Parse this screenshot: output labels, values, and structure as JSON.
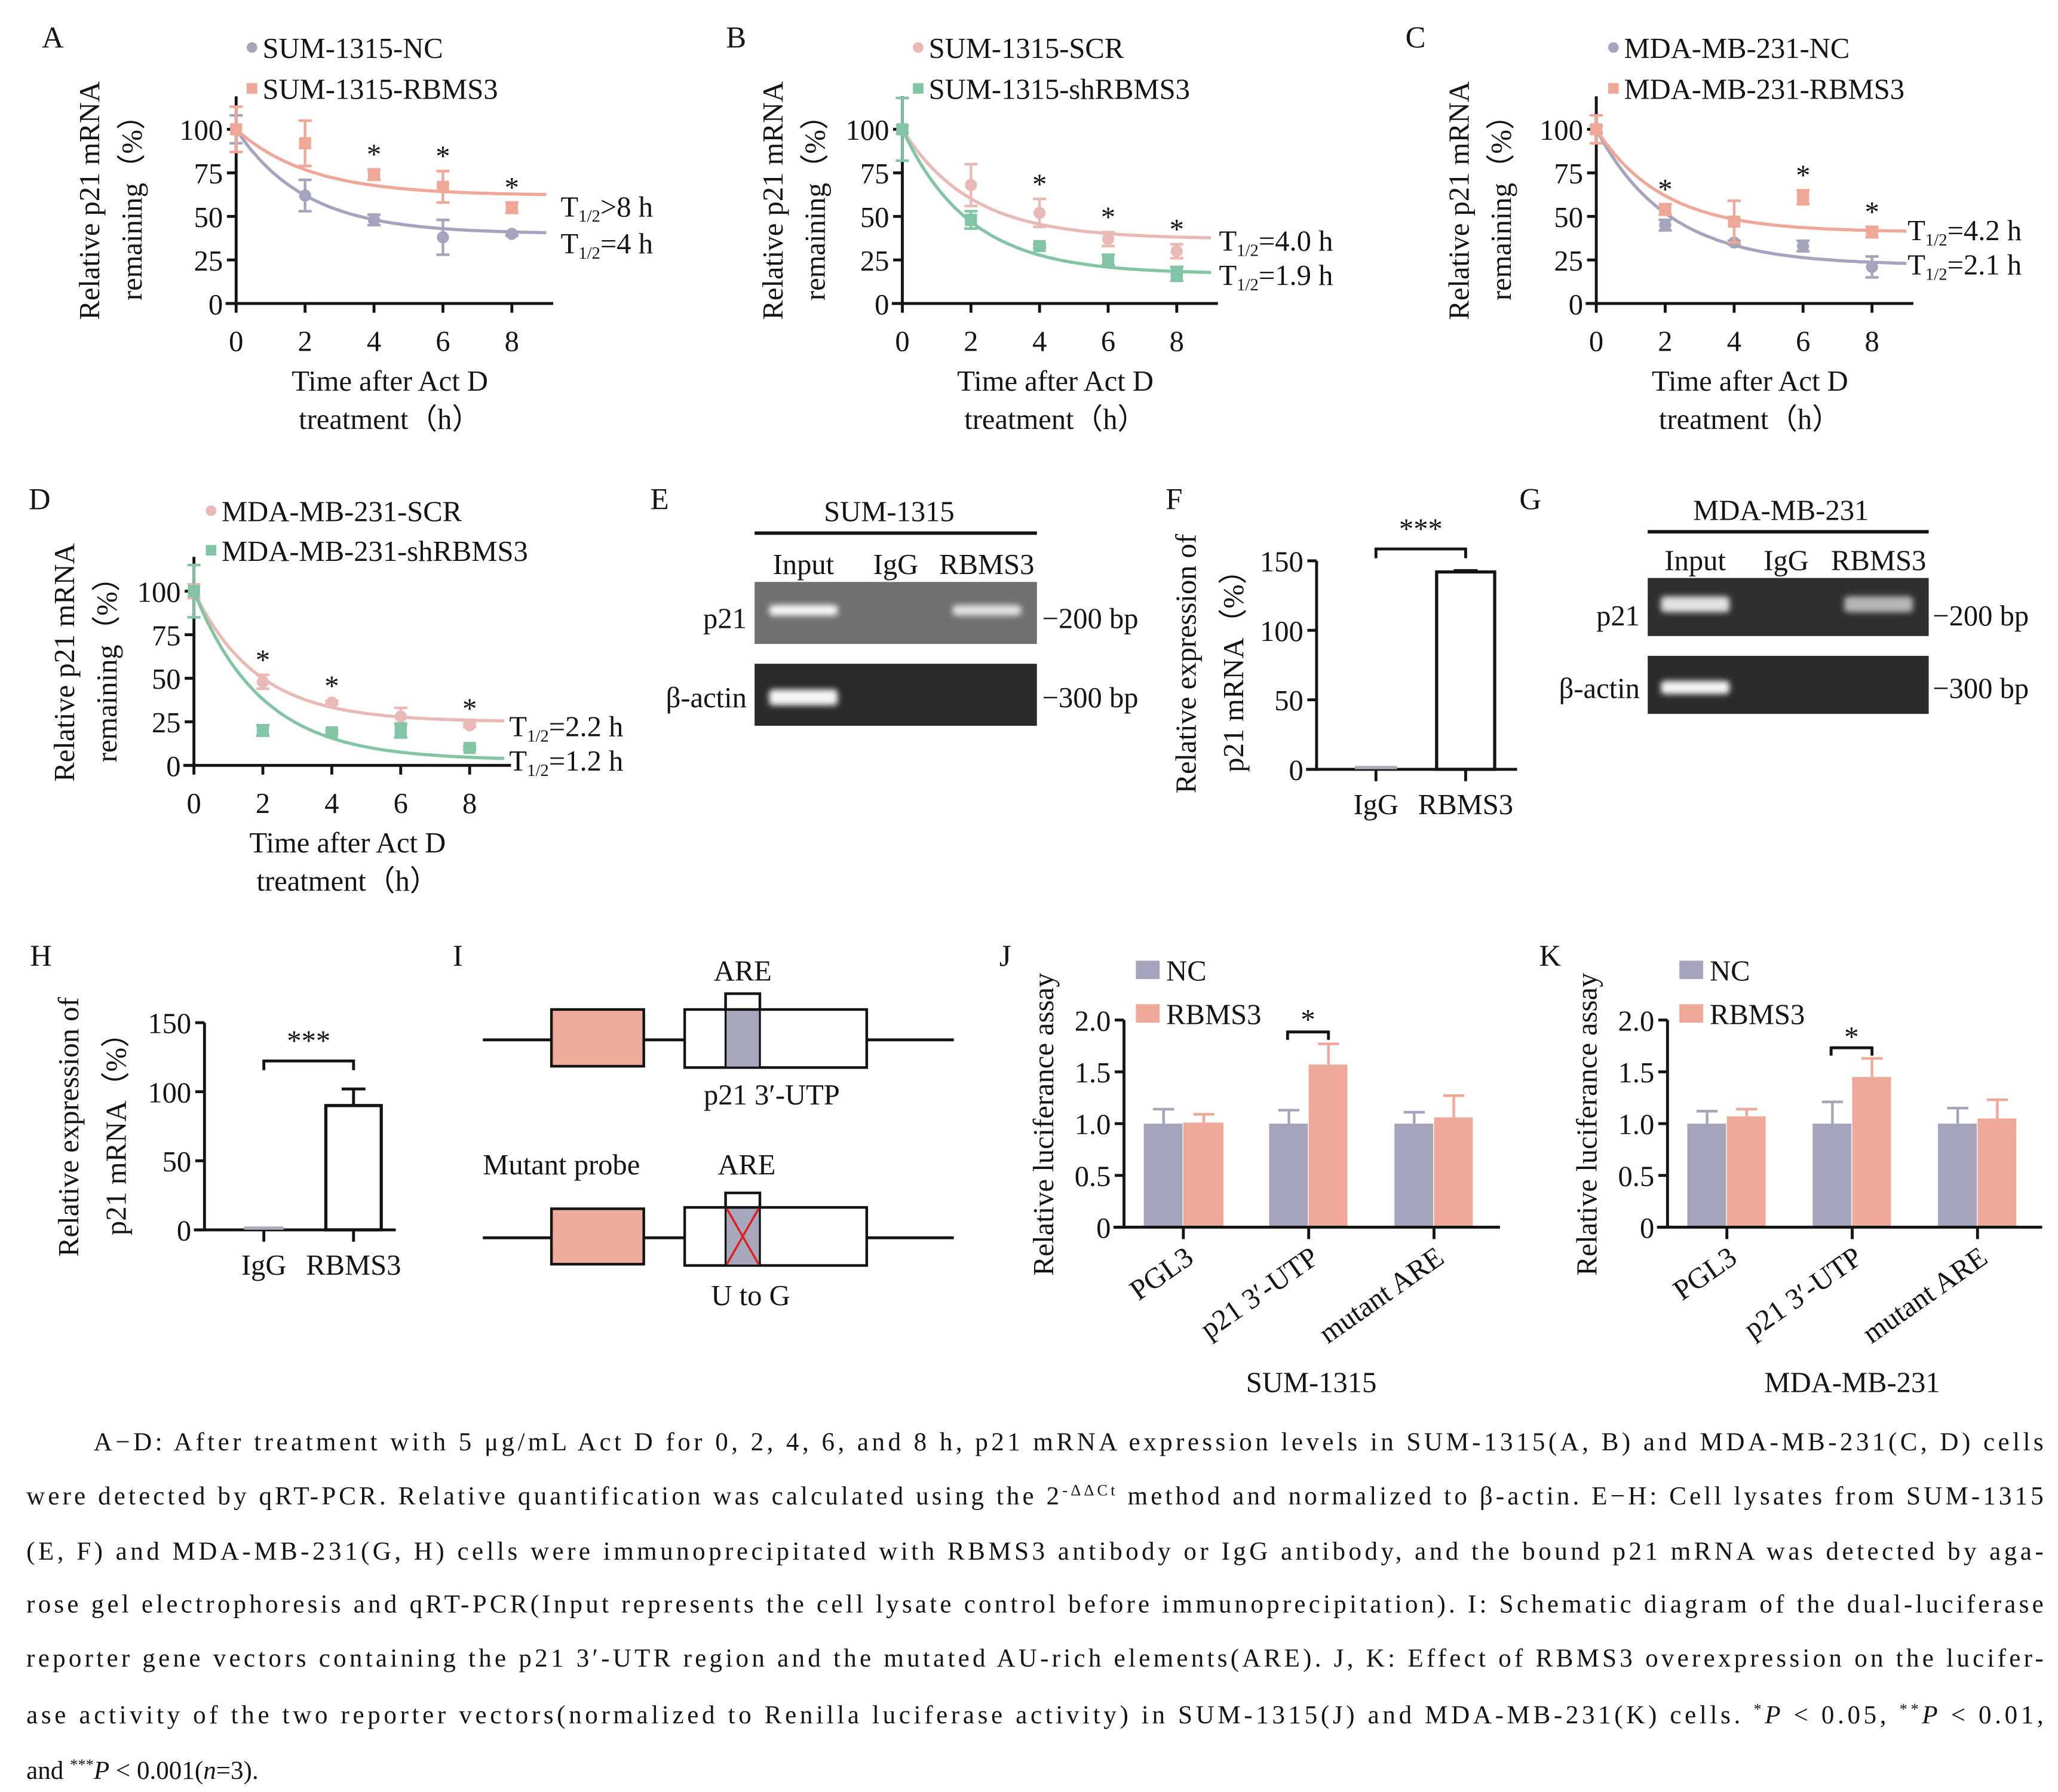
{
  "colors": {
    "NC": "#a4a4bd",
    "RBMS3": "#efa898",
    "SCR": "#e9b9b5",
    "shRBMS3": "#82c4a4",
    "diagram_box": "#efab9b",
    "diagram_are": "#a7a7bd",
    "mutation_cross": "#e02020"
  },
  "chart_data": [
    {
      "panel": "A",
      "type": "line",
      "x": [
        0,
        2,
        4,
        6,
        8
      ],
      "xlim": [
        0,
        9
      ],
      "ylim": [
        0,
        120
      ],
      "xticks": [
        0,
        2,
        4,
        6,
        8
      ],
      "yticks": [
        0,
        25,
        50,
        75,
        100
      ],
      "xlabel": [
        "Time after Act D",
        "treatment（h）"
      ],
      "ylabel": [
        "Relative p21 mRNA",
        "remaining（%）"
      ],
      "legend": "top",
      "grid": false,
      "series": [
        {
          "name": "SUM-1315-NC",
          "marker": "circle",
          "color": "#a4a4bd",
          "y": [
            100,
            62,
            48,
            38,
            40
          ],
          "err": [
            8,
            9,
            3,
            10,
            1
          ],
          "halflife": {
            "base": "T",
            "sub": "1/2",
            "value": "=4 h"
          }
        },
        {
          "name": "SUM-1315-RBMS3",
          "marker": "square",
          "color": "#efa898",
          "y": [
            100,
            92,
            74,
            67,
            55
          ],
          "err": [
            13,
            13,
            3,
            9,
            3
          ],
          "halflife": {
            "base": "T",
            "sub": "1/2",
            "value": ">8 h"
          }
        }
      ],
      "significance": {
        "label": "*",
        "x": [
          4,
          6,
          8
        ]
      }
    },
    {
      "panel": "B",
      "type": "line",
      "x": [
        0,
        2,
        4,
        6,
        8
      ],
      "xlim": [
        0,
        9
      ],
      "ylim": [
        0,
        120
      ],
      "xticks": [
        0,
        2,
        4,
        6,
        8
      ],
      "yticks": [
        0,
        25,
        50,
        75,
        100
      ],
      "xlabel": [
        "Time after Act D",
        "treatment（h）"
      ],
      "ylabel": [
        "Relative p21 mRNA",
        "remaining（%）"
      ],
      "legend": "top",
      "grid": false,
      "series": [
        {
          "name": "SUM-1315-SCR",
          "marker": "circle",
          "color": "#e9b9b5",
          "y": [
            100,
            68,
            52,
            37,
            30
          ],
          "err": [
            2,
            12,
            8,
            4,
            4
          ],
          "halflife": {
            "base": "T",
            "sub": "1/2",
            "value": "=4.0 h"
          }
        },
        {
          "name": "SUM-1315-shRBMS3",
          "marker": "square",
          "color": "#82c4a4",
          "y": [
            100,
            48,
            33,
            25,
            17
          ],
          "err": [
            18,
            5,
            1,
            3,
            4
          ],
          "halflife": {
            "base": "T",
            "sub": "1/2",
            "value": "=1.9 h"
          }
        }
      ],
      "significance": {
        "label": "*",
        "x": [
          4,
          6,
          8
        ]
      }
    },
    {
      "panel": "C",
      "type": "line",
      "x": [
        0,
        2,
        4,
        6,
        8
      ],
      "xlim": [
        0,
        9
      ],
      "ylim": [
        0,
        120
      ],
      "xticks": [
        0,
        2,
        4,
        6,
        8
      ],
      "yticks": [
        0,
        25,
        50,
        75,
        100
      ],
      "xlabel": [
        "Time after Act D",
        "treatment（h）"
      ],
      "ylabel": [
        "Relative p21 mRNA",
        "remaining（%）"
      ],
      "legend": "top",
      "grid": false,
      "series": [
        {
          "name": "MDA-MB-231-NC",
          "marker": "circle",
          "color": "#a4a4bd",
          "y": [
            100,
            45,
            35,
            33,
            21
          ],
          "err": [
            2,
            3,
            1,
            3,
            6
          ],
          "halflife": {
            "base": "T",
            "sub": "1/2",
            "value": "=2.1 h"
          }
        },
        {
          "name": "MDA-MB-231-RBMS3",
          "marker": "square",
          "color": "#efa898",
          "y": [
            100,
            54,
            47,
            61,
            41
          ],
          "err": [
            8,
            3,
            12,
            4,
            3
          ],
          "halflife": {
            "base": "T",
            "sub": "1/2",
            "value": "=4.2 h"
          }
        }
      ],
      "significance": {
        "label": "*",
        "x": [
          2,
          6,
          8
        ]
      }
    },
    {
      "panel": "D",
      "type": "line",
      "x": [
        0,
        2,
        4,
        6,
        8
      ],
      "xlim": [
        0,
        9
      ],
      "ylim": [
        0,
        120
      ],
      "xticks": [
        0,
        2,
        4,
        6,
        8
      ],
      "yticks": [
        0,
        25,
        50,
        75,
        100
      ],
      "xlabel": [
        "Time after Act D",
        "treatment（h）"
      ],
      "ylabel": [
        "Relative p21 mRNA",
        "remaining（%）"
      ],
      "legend": "top",
      "grid": false,
      "series": [
        {
          "name": "MDA-MB-231-SCR",
          "marker": "circle",
          "color": "#e9b9b5",
          "y": [
            100,
            48,
            36,
            28,
            23
          ],
          "err": [
            4,
            4,
            1,
            5,
            1
          ],
          "halflife": {
            "base": "T",
            "sub": "1/2",
            "value": "=2.2 h"
          }
        },
        {
          "name": "MDA-MB-231-shRBMS3",
          "marker": "square",
          "color": "#82c4a4",
          "y": [
            100,
            20,
            19,
            20,
            10
          ],
          "err": [
            15,
            3,
            1,
            4,
            1
          ],
          "halflife": {
            "base": "T",
            "sub": "1/2",
            "value": "=1.2 h"
          }
        }
      ],
      "significance": {
        "label": "*",
        "x": [
          2,
          4,
          8
        ]
      }
    },
    {
      "panel": "F",
      "type": "bar",
      "categories": [
        "IgG",
        "RBMS3"
      ],
      "values": [
        1,
        142
      ],
      "err": [
        0,
        1
      ],
      "ylim": [
        0,
        150
      ],
      "yticks": [
        0,
        50,
        100,
        150
      ],
      "ylabel": [
        "Relative expression of",
        "p21 mRNA（%）"
      ],
      "significance": {
        "label": "***",
        "pair": [
          "IgG",
          "RBMS3"
        ]
      }
    },
    {
      "panel": "H",
      "type": "bar",
      "categories": [
        "IgG",
        "RBMS3"
      ],
      "values": [
        1,
        90
      ],
      "err": [
        0,
        12
      ],
      "ylim": [
        0,
        150
      ],
      "yticks": [
        0,
        50,
        100,
        150
      ],
      "ylabel": [
        "Relative expression of",
        "p21 mRNA（%）"
      ],
      "significance": {
        "label": "***",
        "pair": [
          "IgG",
          "RBMS3"
        ]
      }
    },
    {
      "panel": "J",
      "type": "bar",
      "categories": [
        "PGL3",
        "p21 3′-UTP",
        "mutant ARE"
      ],
      "series": [
        {
          "name": "NC",
          "color": "#a4a4bd",
          "values": [
            1.0,
            1.0,
            1.0
          ],
          "err": [
            0.14,
            0.13,
            0.11
          ]
        },
        {
          "name": "RBMS3",
          "color": "#efa898",
          "values": [
            1.01,
            1.57,
            1.06
          ],
          "err": [
            0.08,
            0.2,
            0.21
          ]
        }
      ],
      "ylim": [
        0,
        2
      ],
      "yticks": [
        0,
        0.5,
        1,
        1.5,
        2
      ],
      "ytick_labels": [
        "0",
        "0.5",
        "1.0",
        "1.5",
        "2.0"
      ],
      "xlabel": "SUM-1315",
      "ylabel": "Relative luciferance assay",
      "legend": "top-left",
      "significance": {
        "label": "*",
        "category": "p21 3′-UTP"
      }
    },
    {
      "panel": "K",
      "type": "bar",
      "categories": [
        "PGL3",
        "p21 3′-UTP",
        "mutant ARE"
      ],
      "series": [
        {
          "name": "NC",
          "color": "#a4a4bd",
          "values": [
            1.0,
            1.0,
            1.0
          ],
          "err": [
            0.12,
            0.21,
            0.15
          ]
        },
        {
          "name": "RBMS3",
          "color": "#efa898",
          "values": [
            1.07,
            1.45,
            1.05
          ],
          "err": [
            0.07,
            0.18,
            0.18
          ]
        }
      ],
      "ylim": [
        0,
        2
      ],
      "yticks": [
        0,
        0.5,
        1,
        1.5,
        2
      ],
      "ytick_labels": [
        "0",
        "0.5",
        "1.0",
        "1.5",
        "2.0"
      ],
      "xlabel": "MDA-MB-231",
      "ylabel": "Relative luciferance assay",
      "legend": "top-left",
      "significance": {
        "label": "*",
        "category": "p21 3′-UTP"
      }
    }
  ],
  "gels": [
    {
      "panel": "E",
      "title": "SUM-1315",
      "lanes": [
        "Input",
        "IgG",
        "RBMS3"
      ],
      "rows": [
        {
          "label": "p21",
          "size": "−200 bp",
          "band_intensity": [
            1.0,
            0.0,
            0.75
          ]
        },
        {
          "label": "β-actin",
          "size": "−300 bp",
          "band_intensity": [
            1.0,
            0.0,
            0.0
          ]
        }
      ]
    },
    {
      "panel": "G",
      "title": "MDA-MB-231",
      "lanes": [
        "Input",
        "IgG",
        "RBMS3"
      ],
      "rows": [
        {
          "label": "p21",
          "size": "−200 bp",
          "band_intensity": [
            0.85,
            0.0,
            0.5
          ]
        },
        {
          "label": "β-actin",
          "size": "−300 bp",
          "band_intensity": [
            1.0,
            0.0,
            0.0
          ]
        }
      ]
    }
  ],
  "diagram": {
    "panel": "I",
    "top": {
      "are_label": "ARE",
      "caption": "p21 3′-UTP"
    },
    "bottom": {
      "title": "Mutant probe",
      "are_label": "ARE",
      "caption": "U to G"
    }
  },
  "caption": {
    "lines": [
      [
        {
          "text": "A−D: After treatment with 5 μg/mL Act D for 0, 2, 4, 6, and 8 h, p21 mRNA expression levels in SUM-1315(A, B) and MDA-MB-231(C, D) cells"
        }
      ],
      [
        {
          "text": "were detected by qRT-PCR. Relative quantification was calculated using the 2"
        },
        {
          "text": "-ΔΔCt",
          "style": "sup"
        },
        {
          "text": " method and normalized to β-actin. E−H: Cell lysates from SUM-1315"
        }
      ],
      [
        {
          "text": "(E, F) and MDA-MB-231(G, H) cells were immunoprecipitated with RBMS3 antibody or IgG antibody, and the bound p21 mRNA was detected by aga-"
        }
      ],
      [
        {
          "text": "rose gel electrophoresis and qRT-PCR(Input represents the cell lysate control before immunoprecipitation). I: Schematic diagram of the dual-luciferase"
        }
      ],
      [
        {
          "text": "reporter gene vectors containing the p21 3′-UTR region and the mutated AU-rich elements(ARE). J, K: Effect of RBMS3 overexpression on the lucifer-"
        }
      ],
      [
        {
          "text": "ase activity of the two reporter vectors(normalized to Renilla luciferase activity) in SUM-1315(J) and MDA-MB-231(K) cells. "
        },
        {
          "text": "*",
          "style": "sup"
        },
        {
          "text": "P",
          "style": "it"
        },
        {
          "text": " < 0.05, "
        },
        {
          "text": "**",
          "style": "sup"
        },
        {
          "text": "P",
          "style": "it"
        },
        {
          "text": " < 0.01,"
        }
      ],
      [
        {
          "text": "and "
        },
        {
          "text": "***",
          "style": "sup"
        },
        {
          "text": "P",
          "style": "it"
        },
        {
          "text": " < 0.001("
        },
        {
          "text": "n",
          "style": "it"
        },
        {
          "text": "=3)."
        }
      ]
    ]
  }
}
